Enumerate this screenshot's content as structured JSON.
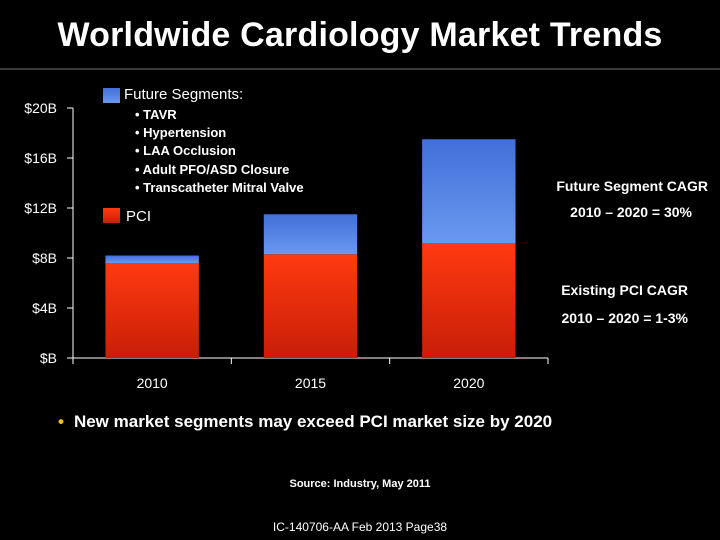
{
  "title": "Worldwide Cardiology Market Trends",
  "chart_data": {
    "type": "bar",
    "stacked": true,
    "categories": [
      "2010",
      "2015",
      "2020"
    ],
    "series": [
      {
        "name": "PCI",
        "values": [
          7.6,
          8.3,
          9.2
        ],
        "color": "#e83010"
      },
      {
        "name": "Future Segments",
        "values": [
          0.6,
          3.2,
          8.3
        ],
        "color": "#4f7fe0"
      }
    ],
    "ylim": [
      0,
      20
    ],
    "yticks": [
      "$B",
      "$4B",
      "$8B",
      "$12B",
      "$16B",
      "$20B"
    ],
    "ytick_values": [
      0,
      4,
      8,
      12,
      16,
      20
    ]
  },
  "legend": {
    "future_label": "Future Segments:",
    "future_items": [
      "• TAVR",
      "• Hypertension",
      "• LAA Occlusion",
      "• Adult PFO/ASD Closure",
      "• Transcatheter Mitral Valve"
    ],
    "pci_label": "PCI"
  },
  "annotations": {
    "future_cagr_title": "Future Segment CAGR",
    "future_cagr_value": "2010 – 2020 = 30%",
    "pci_cagr_title": "Existing PCI CAGR",
    "pci_cagr_value": "2010 – 2020 = 1-3%"
  },
  "bullet": "New market segments may exceed PCI market size by 2020",
  "source": "Source: Industry, May 2011",
  "footer": "IC-140706-AA Feb 2013 Page38"
}
